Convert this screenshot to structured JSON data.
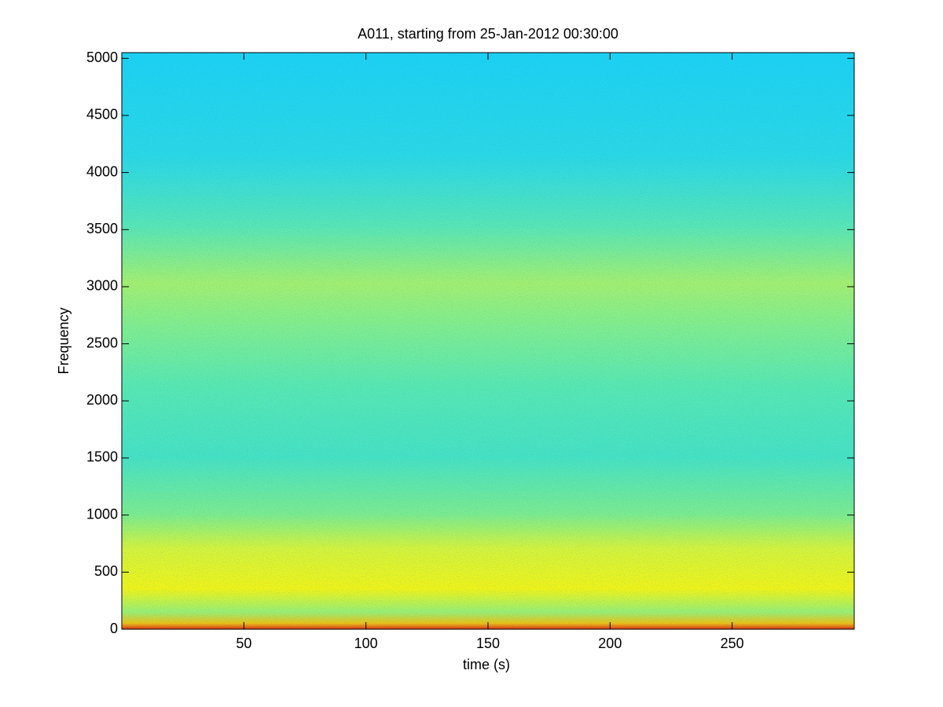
{
  "chart_data": {
    "type": "spectrogram",
    "title": "A011, starting from 25-Jan-2012 00:30:00",
    "x_label": "time (s)",
    "y_label": "Frequency",
    "xlim": [
      0,
      300
    ],
    "xticks": [
      50,
      100,
      150,
      200,
      250
    ],
    "ylim": [
      0,
      5050
    ],
    "yticks": [
      0,
      500,
      1000,
      1500,
      2000,
      2500,
      3000,
      3500,
      4000,
      4500,
      5000
    ],
    "colormap": "jet"
  }
}
